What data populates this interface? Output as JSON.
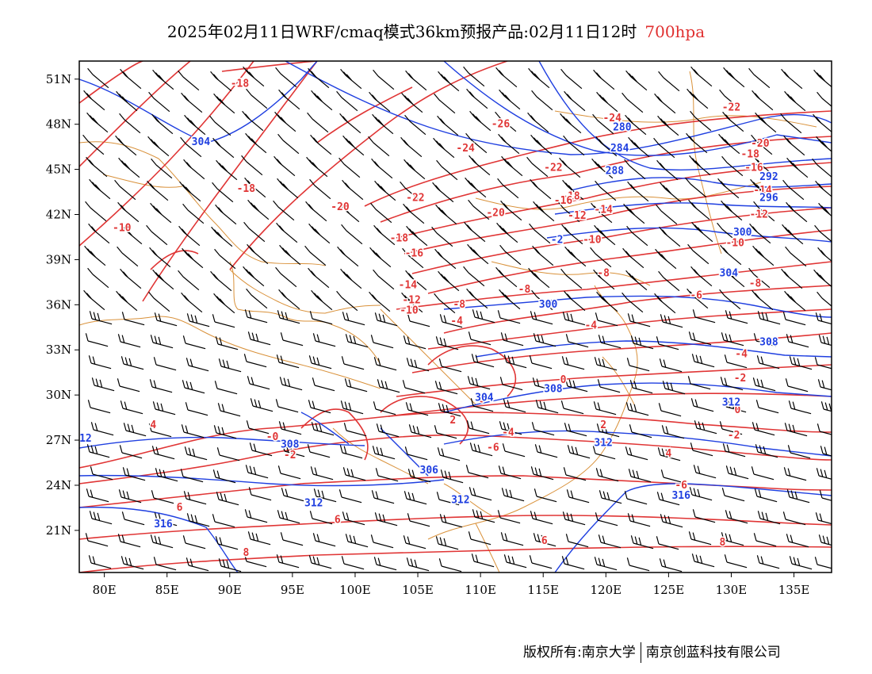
{
  "header": {
    "title": "2025年02月11日WRF/cmaq模式36km预报产品:02月11日12时",
    "level": "700hpa"
  },
  "map": {
    "lon_range": [
      78,
      138
    ],
    "lat_range": [
      18.2,
      52.2
    ],
    "lat_labels": [
      "51N",
      "48N",
      "45N",
      "42N",
      "39N",
      "36N",
      "33N",
      "30N",
      "27N",
      "24N",
      "21N"
    ],
    "lat_values": [
      51,
      48,
      45,
      42,
      39,
      36,
      33,
      30,
      27,
      24,
      21
    ],
    "lon_labels": [
      "80E",
      "85E",
      "90E",
      "95E",
      "100E",
      "105E",
      "110E",
      "115E",
      "120E",
      "125E",
      "130E",
      "135E"
    ],
    "lon_values": [
      80,
      85,
      90,
      95,
      100,
      105,
      110,
      115,
      120,
      125,
      130,
      135
    ],
    "colors": {
      "temperature": "#e03535",
      "height": "#1f3fe0",
      "border": "#d9913a",
      "barb": "#000000",
      "frame": "#000000"
    },
    "temperature_labels": [
      {
        "text": "-18",
        "lon": 90.8,
        "lat": 50.5
      },
      {
        "text": "-26",
        "lon": 111.6,
        "lat": 47.8
      },
      {
        "text": "-24",
        "lon": 120.5,
        "lat": 48.2
      },
      {
        "text": "-22",
        "lon": 130,
        "lat": 48.9
      },
      {
        "text": "-20",
        "lon": 132.3,
        "lat": 46.5
      },
      {
        "text": "-18",
        "lon": 131.5,
        "lat": 45.8
      },
      {
        "text": "-16",
        "lon": 131.8,
        "lat": 44.9
      },
      {
        "text": "-14",
        "lon": 132.5,
        "lat": 43.4
      },
      {
        "text": "-12",
        "lon": 132.2,
        "lat": 41.8
      },
      {
        "text": "-10",
        "lon": 130.3,
        "lat": 39.9
      },
      {
        "text": "-24",
        "lon": 108.8,
        "lat": 46.2
      },
      {
        "text": "-22",
        "lon": 115.8,
        "lat": 44.9
      },
      {
        "text": "-18",
        "lon": 91.3,
        "lat": 43.5
      },
      {
        "text": "-20",
        "lon": 98.8,
        "lat": 42.3
      },
      {
        "text": "-22",
        "lon": 104.8,
        "lat": 42.9
      },
      {
        "text": "-20",
        "lon": 111.2,
        "lat": 41.9
      },
      {
        "text": "-18",
        "lon": 117.2,
        "lat": 43.0
      },
      {
        "text": "-16",
        "lon": 116.6,
        "lat": 42.7
      },
      {
        "text": "-14",
        "lon": 119.8,
        "lat": 42.1
      },
      {
        "text": "-12",
        "lon": 117.7,
        "lat": 41.7
      },
      {
        "text": "-10",
        "lon": 118.9,
        "lat": 40.1
      },
      {
        "text": "-10",
        "lon": 81.4,
        "lat": 40.9
      },
      {
        "text": "-18",
        "lon": 103.5,
        "lat": 40.2
      },
      {
        "text": "-16",
        "lon": 104.7,
        "lat": 39.2
      },
      {
        "text": "-14",
        "lon": 104.2,
        "lat": 37.1
      },
      {
        "text": "-12",
        "lon": 104.5,
        "lat": 36.1
      },
      {
        "text": "-10",
        "lon": 104.3,
        "lat": 35.4
      },
      {
        "text": "-8",
        "lon": 108.3,
        "lat": 35.8
      },
      {
        "text": "-8",
        "lon": 119.8,
        "lat": 37.9
      },
      {
        "text": "-8",
        "lon": 113.5,
        "lat": 36.8
      },
      {
        "text": "-8",
        "lon": 131.9,
        "lat": 37.2
      },
      {
        "text": "-6",
        "lon": 127.2,
        "lat": 36.4
      },
      {
        "text": "-4",
        "lon": 108.1,
        "lat": 34.7
      },
      {
        "text": "-4",
        "lon": 118.8,
        "lat": 34.4
      },
      {
        "text": "-4",
        "lon": 130.8,
        "lat": 32.5
      },
      {
        "text": "-2",
        "lon": 130.7,
        "lat": 30.9
      },
      {
        "text": "0",
        "lon": 116.6,
        "lat": 30.8
      },
      {
        "text": "0",
        "lon": 110.1,
        "lat": 29.5
      },
      {
        "text": "0",
        "lon": 130.5,
        "lat": 28.8
      },
      {
        "text": "-2",
        "lon": 130.2,
        "lat": 27.1
      },
      {
        "text": "2",
        "lon": 107.8,
        "lat": 28.1
      },
      {
        "text": "2",
        "lon": 119.8,
        "lat": 27.8
      },
      {
        "text": "-4",
        "lon": 112.2,
        "lat": 27.3
      },
      {
        "text": "-0",
        "lon": 93.4,
        "lat": 27.0
      },
      {
        "text": "-6",
        "lon": 111.0,
        "lat": 26.3
      },
      {
        "text": "-2",
        "lon": 94.8,
        "lat": 25.8
      },
      {
        "text": "4",
        "lon": 83.9,
        "lat": 27.8
      },
      {
        "text": "4",
        "lon": 125.0,
        "lat": 25.9
      },
      {
        "text": "-6",
        "lon": 126.0,
        "lat": 23.8
      },
      {
        "text": "6",
        "lon": 86.0,
        "lat": 22.3
      },
      {
        "text": "6",
        "lon": 98.6,
        "lat": 21.5
      },
      {
        "text": "6",
        "lon": 115.1,
        "lat": 20.1
      },
      {
        "text": "8",
        "lon": 129.3,
        "lat": 20.0
      },
      {
        "text": "8",
        "lon": 91.3,
        "lat": 19.3
      }
    ],
    "height_labels": [
      {
        "text": "304",
        "lon": 87.7,
        "lat": 46.6
      },
      {
        "text": "280",
        "lon": 121.3,
        "lat": 47.6
      },
      {
        "text": "284",
        "lon": 121.1,
        "lat": 46.2
      },
      {
        "text": "288",
        "lon": 120.7,
        "lat": 44.7
      },
      {
        "text": "292",
        "lon": 133.0,
        "lat": 44.3
      },
      {
        "text": "296",
        "lon": 133.0,
        "lat": 42.9
      },
      {
        "text": "300",
        "lon": 130.9,
        "lat": 40.6
      },
      {
        "text": "-2",
        "lon": 116.1,
        "lat": 40.1
      },
      {
        "text": "304",
        "lon": 129.8,
        "lat": 37.9
      },
      {
        "text": "300",
        "lon": 115.4,
        "lat": 35.8
      },
      {
        "text": "308",
        "lon": 133.0,
        "lat": 33.3
      },
      {
        "text": "304",
        "lon": 110.3,
        "lat": 29.6
      },
      {
        "text": "308",
        "lon": 115.8,
        "lat": 30.2
      },
      {
        "text": "312",
        "lon": 130.0,
        "lat": 29.3
      },
      {
        "text": "308",
        "lon": 94.8,
        "lat": 26.5
      },
      {
        "text": "312",
        "lon": 119.8,
        "lat": 26.6
      },
      {
        "text": "306",
        "lon": 105.9,
        "lat": 24.8
      },
      {
        "text": "312",
        "lon": 96.7,
        "lat": 22.6
      },
      {
        "text": "312",
        "lon": 108.4,
        "lat": 22.8
      },
      {
        "text": "316",
        "lon": 126.0,
        "lat": 23.1
      },
      {
        "text": "316",
        "lon": 84.7,
        "lat": 21.2
      },
      {
        "text": "12",
        "lon": 78.5,
        "lat": 26.9
      }
    ]
  },
  "footer": {
    "copyright": "版权所有:南京大学",
    "company": "南京创蓝科技有限公司"
  }
}
